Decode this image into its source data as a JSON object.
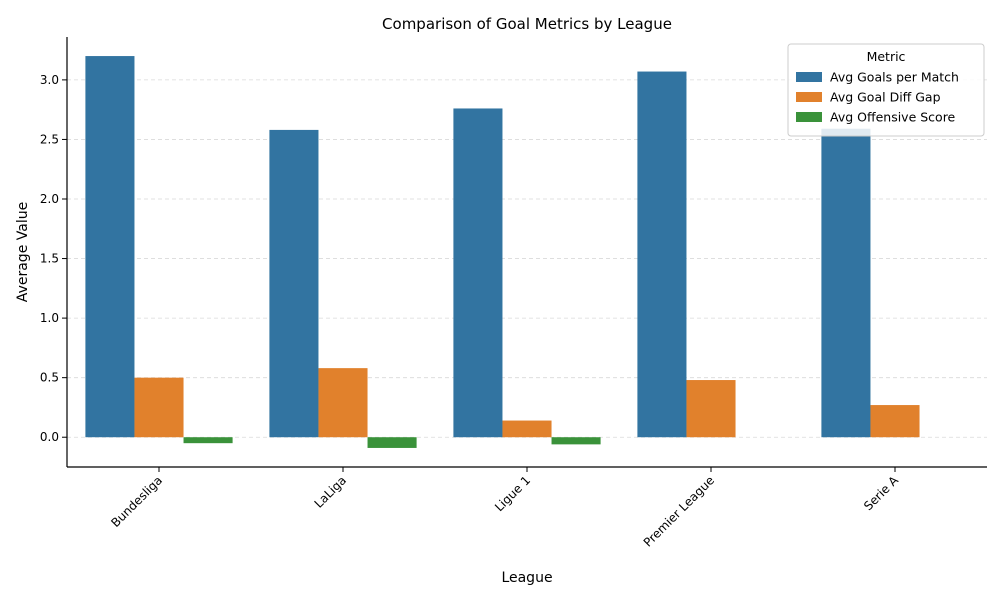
{
  "chart_data": {
    "type": "bar",
    "title": "Comparison of Goal Metrics by League",
    "xlabel": "League",
    "ylabel": "Average Value",
    "categories": [
      "Bundesliga",
      "LaLiga",
      "Ligue 1",
      "Premier League",
      "Serie A"
    ],
    "series": [
      {
        "name": "Avg Goals per Match",
        "color": "#3274a1",
        "values": [
          3.2,
          2.58,
          2.76,
          3.07,
          2.59
        ]
      },
      {
        "name": "Avg Goal Diff Gap",
        "color": "#e1812c",
        "values": [
          0.5,
          0.58,
          0.14,
          0.48,
          0.27
        ]
      },
      {
        "name": "Avg Offensive Score",
        "color": "#3a923a",
        "values": [
          -0.05,
          -0.09,
          -0.06,
          0.0,
          0.0
        ]
      }
    ],
    "ylim": [
      -0.25,
      3.36
    ],
    "yticks": [
      0.0,
      0.5,
      1.0,
      1.5,
      2.0,
      2.5,
      3.0
    ],
    "ytick_labels": [
      "0.0",
      "0.5",
      "1.0",
      "1.5",
      "2.0",
      "2.5",
      "3.0"
    ],
    "grid": "y-dashed",
    "legend": {
      "title": "Metric",
      "placement": "top-right"
    }
  }
}
